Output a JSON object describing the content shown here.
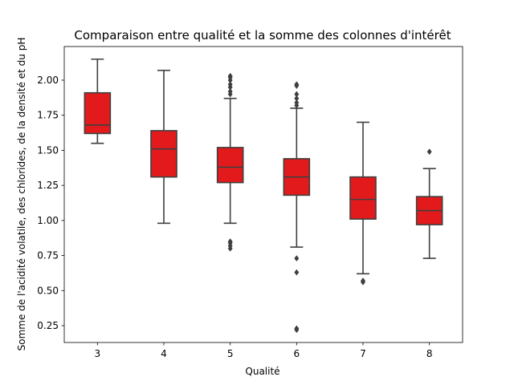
{
  "chart_data": {
    "type": "boxplot",
    "title": "Comparaison entre qualité et la somme des colonnes d'intérêt",
    "xlabel": "Qualité",
    "ylabel": "Somme de l'acidité volatile, des chlorides, de la densité et du pH",
    "categories": [
      "3",
      "4",
      "5",
      "6",
      "7",
      "8"
    ],
    "ylim": [
      0.13,
      2.24
    ],
    "yticks": [
      0.25,
      0.5,
      0.75,
      1.0,
      1.25,
      1.5,
      1.75,
      2.0
    ],
    "ytick_labels": [
      "0.25",
      "0.50",
      "0.75",
      "1.00",
      "1.25",
      "1.50",
      "1.75",
      "2.00"
    ],
    "grid": false,
    "box_color": "#e31a1c",
    "line_color": "#3f3f3f",
    "boxes": [
      {
        "category": "3",
        "whisker_low": 1.55,
        "q1": 1.62,
        "median": 1.68,
        "q3": 1.91,
        "whisker_high": 2.15,
        "outliers": []
      },
      {
        "category": "4",
        "whisker_low": 0.98,
        "q1": 1.31,
        "median": 1.51,
        "q3": 1.64,
        "whisker_high": 2.07,
        "outliers": []
      },
      {
        "category": "5",
        "whisker_low": 0.98,
        "q1": 1.27,
        "median": 1.38,
        "q3": 1.52,
        "whisker_high": 1.87,
        "outliers": [
          0.8,
          0.82,
          0.84,
          0.85,
          1.9,
          1.92,
          1.95,
          1.97,
          2.0,
          2.02,
          2.03
        ]
      },
      {
        "category": "6",
        "whisker_low": 0.81,
        "q1": 1.18,
        "median": 1.31,
        "q3": 1.44,
        "whisker_high": 1.8,
        "outliers": [
          0.22,
          0.23,
          0.63,
          0.73,
          1.82,
          1.84,
          1.87,
          1.9,
          1.96,
          1.97
        ]
      },
      {
        "category": "7",
        "whisker_low": 0.62,
        "q1": 1.01,
        "median": 1.15,
        "q3": 1.31,
        "whisker_high": 1.7,
        "outliers": [
          0.56,
          0.57
        ]
      },
      {
        "category": "8",
        "whisker_low": 0.73,
        "q1": 0.97,
        "median": 1.07,
        "q3": 1.17,
        "whisker_high": 1.37,
        "outliers": [
          1.49
        ]
      }
    ]
  }
}
